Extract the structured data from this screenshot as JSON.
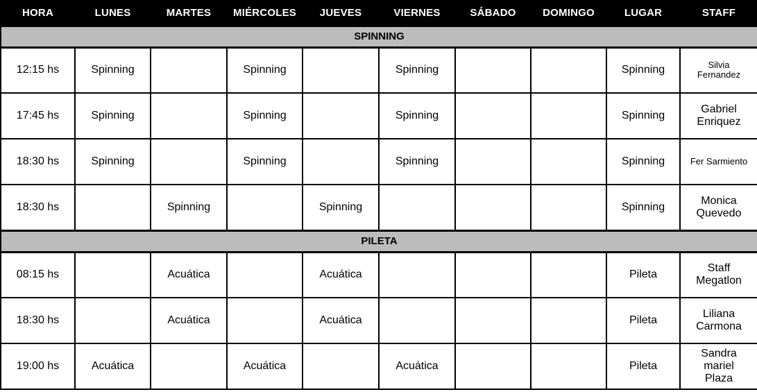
{
  "colors": {
    "header_bg": "#000000",
    "header_text": "#ffffff",
    "section_bg": "#bcbcbc",
    "border": "#000000",
    "cell_bg": "#ffffff",
    "cell_text": "#000000"
  },
  "table": {
    "columns": [
      {
        "key": "hora",
        "label": "HORA"
      },
      {
        "key": "lunes",
        "label": "LUNES"
      },
      {
        "key": "martes",
        "label": "MARTES"
      },
      {
        "key": "miercoles",
        "label": "MIÉRCOLES"
      },
      {
        "key": "jueves",
        "label": "JUEVES"
      },
      {
        "key": "viernes",
        "label": "VIERNES"
      },
      {
        "key": "sabado",
        "label": "SÁBADO"
      },
      {
        "key": "domingo",
        "label": "DOMINGO"
      },
      {
        "key": "lugar",
        "label": "LUGAR"
      },
      {
        "key": "staff",
        "label": "STAFF"
      }
    ],
    "sections": [
      {
        "title": "SPINNING",
        "rows": [
          {
            "hora": "12:15 hs",
            "lunes": "Spinning",
            "martes": "",
            "miercoles": "Spinning",
            "jueves": "",
            "viernes": "Spinning",
            "sabado": "",
            "domingo": "",
            "lugar": "Spinning",
            "staff": "Silvia\nFernandez",
            "staff_small": true
          },
          {
            "hora": "17:45 hs",
            "lunes": "Spinning",
            "martes": "",
            "miercoles": "Spinning",
            "jueves": "",
            "viernes": "Spinning",
            "sabado": "",
            "domingo": "",
            "lugar": "Spinning",
            "staff": "Gabriel\nEnriquez",
            "staff_small": false
          },
          {
            "hora": "18:30 hs",
            "lunes": "Spinning",
            "martes": "",
            "miercoles": "Spinning",
            "jueves": "",
            "viernes": "Spinning",
            "sabado": "",
            "domingo": "",
            "lugar": "Spinning",
            "staff": "Fer Sarmiento",
            "staff_small": true
          },
          {
            "hora": "18:30 hs",
            "lunes": "",
            "martes": "Spinning",
            "miercoles": "",
            "jueves": "Spinning",
            "viernes": "",
            "sabado": "",
            "domingo": "",
            "lugar": "Spinning",
            "staff": "Monica\nQuevedo",
            "staff_small": false
          }
        ]
      },
      {
        "title": "PILETA",
        "rows": [
          {
            "hora": "08:15 hs",
            "lunes": "",
            "martes": "Acuática",
            "miercoles": "",
            "jueves": "Acuática",
            "viernes": "",
            "sabado": "",
            "domingo": "",
            "lugar": "Pileta",
            "staff": "Staff\nMegatlon",
            "staff_small": false
          },
          {
            "hora": "18:30 hs",
            "lunes": "",
            "martes": "Acuática",
            "miercoles": "",
            "jueves": "Acuática",
            "viernes": "",
            "sabado": "",
            "domingo": "",
            "lugar": "Pileta",
            "staff": "Liliana\nCarmona",
            "staff_small": false
          },
          {
            "hora": "19:00 hs",
            "lunes": "Acuática",
            "martes": "",
            "miercoles": "Acuática",
            "jueves": "",
            "viernes": "Acuática",
            "sabado": "",
            "domingo": "",
            "lugar": "Pileta",
            "staff": "Sandra\nmariel\nPlaza",
            "staff_small": false
          }
        ]
      }
    ]
  }
}
